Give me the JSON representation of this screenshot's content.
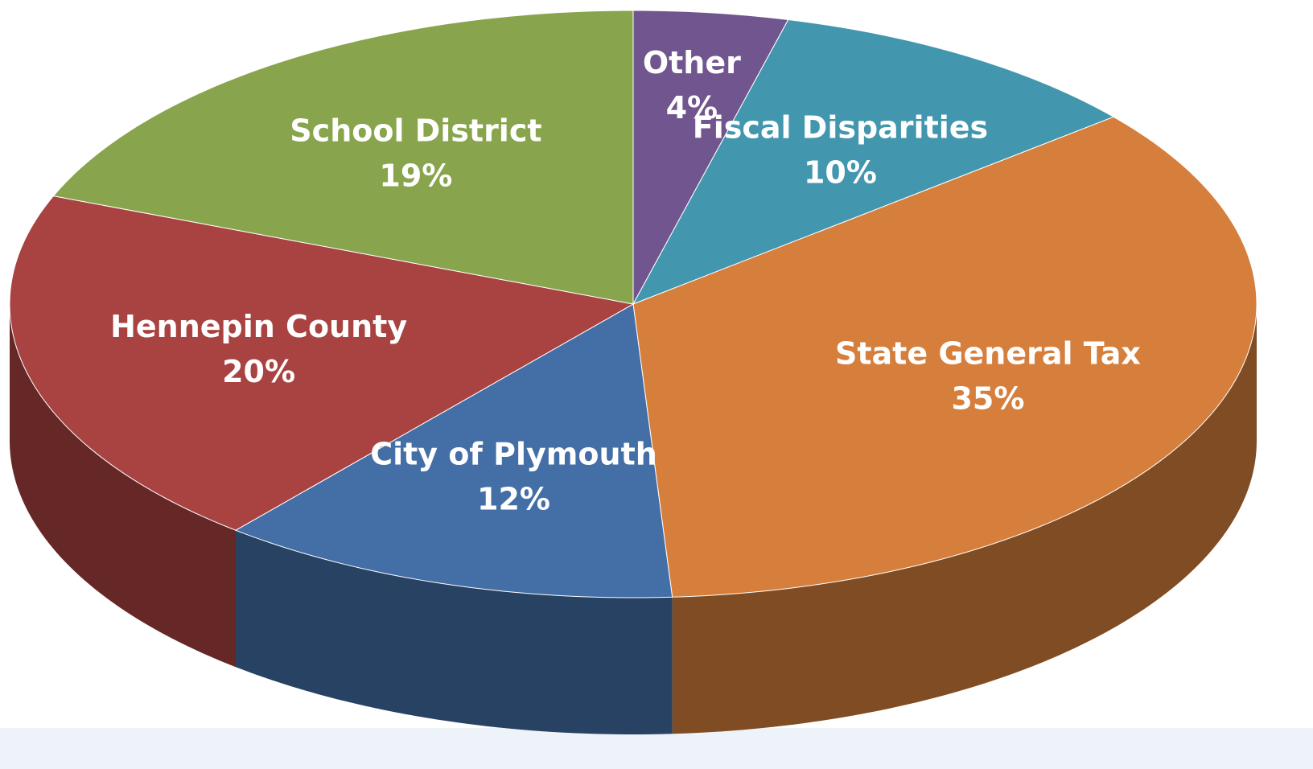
{
  "chart_data": {
    "type": "pie",
    "categories": [
      "Other",
      "Fiscal Disparities",
      "State General Tax",
      "City of Plymouth",
      "Hennepin County",
      "School District"
    ],
    "values": [
      4,
      10,
      35,
      12,
      20,
      19
    ],
    "value_labels": [
      "4%",
      "10%",
      "35%",
      "12%",
      "20%",
      "19%"
    ],
    "colors": [
      "#71558e",
      "#4296ae",
      "#d67e3c",
      "#436ea6",
      "#a84341",
      "#88a44c"
    ]
  }
}
